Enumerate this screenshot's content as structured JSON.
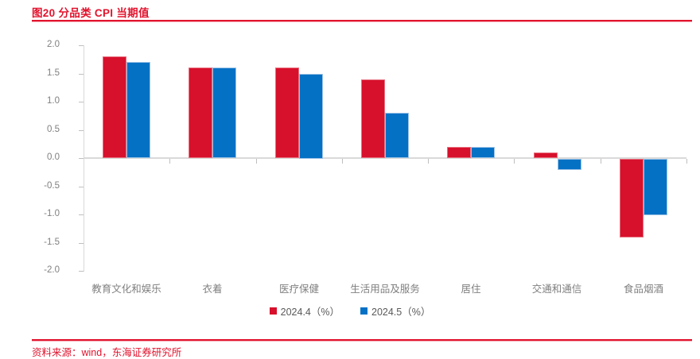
{
  "header": {
    "title": "图20  分品类 CPI 当期值"
  },
  "footer": {
    "source": "资料来源：wind，东海证券研究所"
  },
  "colors": {
    "accent_red": "#e1132d",
    "bar_red": "#d7102c",
    "bar_red_border": "#e8707e",
    "bar_blue": "#0471c5",
    "bar_blue_border": "#9cc2e5",
    "axis_line": "#d9d9d9",
    "tick": "#bfbfbf",
    "axis_text": "#808080",
    "category_text": "#7f7f7f",
    "legend_text": "#595959"
  },
  "chart_data": {
    "type": "bar",
    "title": "图20  分品类 CPI 当期值",
    "categories": [
      "教育文化和娱乐",
      "衣着",
      "医疗保健",
      "生活用品及服务",
      "居住",
      "交通和通信",
      "食品烟酒"
    ],
    "series": [
      {
        "name": "2024.4（%）",
        "color": "#d7102c",
        "border": "#e8707e",
        "values": [
          1.8,
          1.6,
          1.6,
          1.4,
          0.2,
          0.1,
          -1.4
        ]
      },
      {
        "name": "2024.5（%）",
        "color": "#0471c5",
        "border": "#9cc2e5",
        "values": [
          1.7,
          1.6,
          1.5,
          0.8,
          0.2,
          -0.2,
          -1.0
        ]
      }
    ],
    "xlabel": "",
    "ylabel": "",
    "ylim": [
      -2.0,
      2.0
    ],
    "ytick_step": 0.5,
    "yticks": [
      "2.0",
      "1.5",
      "1.0",
      "0.5",
      "0.0",
      "-0.5",
      "-1.0",
      "-1.5",
      "-2.0"
    ],
    "grid": false,
    "legend_position": "bottom"
  }
}
